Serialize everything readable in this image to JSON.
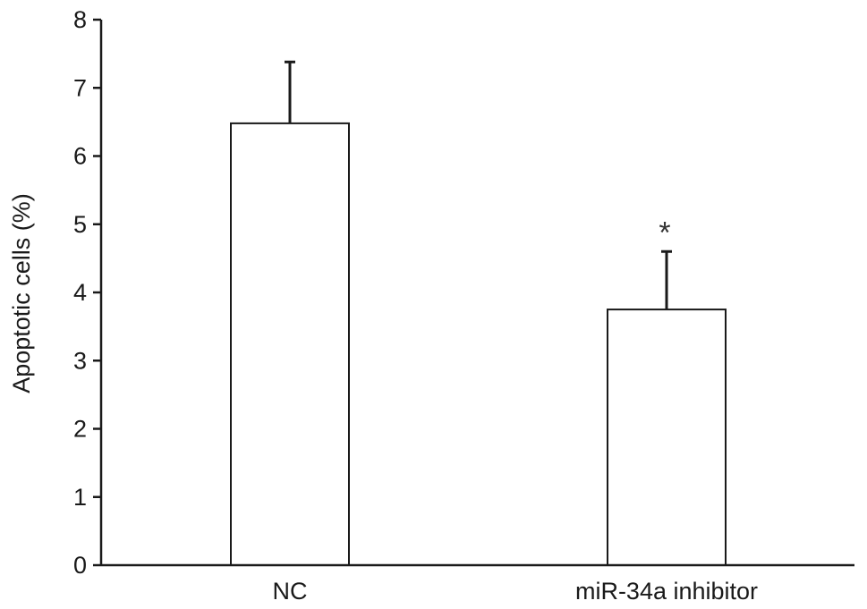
{
  "chart_data": {
    "type": "bar",
    "categories": [
      "NC",
      "miR-34a inhibitor"
    ],
    "values": [
      6.48,
      3.75
    ],
    "errors": [
      0.9,
      0.85
    ],
    "annotations": [
      "",
      "*"
    ],
    "title": "",
    "xlabel": "",
    "ylabel": "Apoptotic cells (%)",
    "ylim": [
      0,
      8
    ],
    "yticks": [
      0,
      1,
      2,
      3,
      4,
      5,
      6,
      7,
      8
    ],
    "grid": false,
    "legend": "none",
    "colors": {
      "bar_fill": "#ffffff",
      "bar_stroke": "#1a1a1a",
      "axis": "#1a1a1a"
    }
  }
}
